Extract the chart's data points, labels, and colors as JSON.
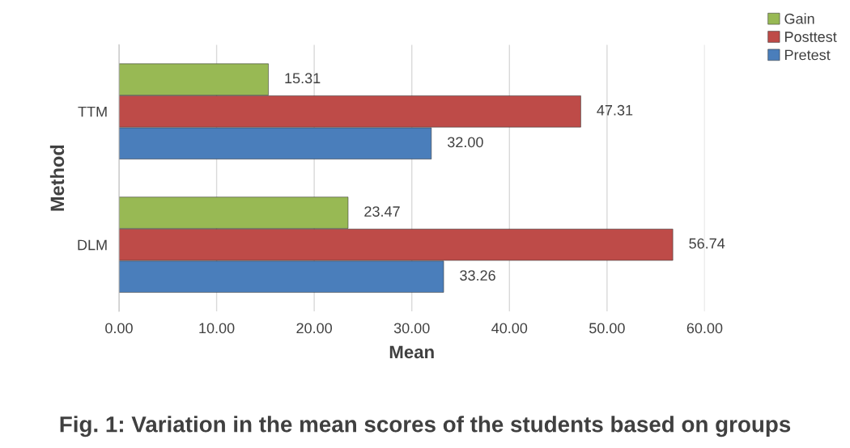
{
  "chart_data": {
    "type": "bar",
    "orientation": "horizontal",
    "title": "Fig. 1: Variation in the mean scores of the students based on groups",
    "xlabel": "Mean",
    "ylabel": "Method",
    "categories": [
      "TTM",
      "DLM"
    ],
    "series": [
      {
        "name": "Pretest",
        "color": "#4a7ebb",
        "values": [
          32.0,
          33.26
        ],
        "value_labels": [
          "32.00",
          "33.26"
        ]
      },
      {
        "name": "Posttest",
        "color": "#be4b48",
        "values": [
          47.31,
          56.74
        ],
        "value_labels": [
          "47.31",
          "56.74"
        ]
      },
      {
        "name": "Gain",
        "color": "#98b954",
        "values": [
          15.31,
          23.47
        ],
        "value_labels": [
          "15.31",
          "23.47"
        ]
      }
    ],
    "xlim": [
      0,
      60
    ],
    "xticks": [
      {
        "value": 0,
        "label": "0.00"
      },
      {
        "value": 10,
        "label": "10.00"
      },
      {
        "value": 20,
        "label": "20.00"
      },
      {
        "value": 30,
        "label": "30.00"
      },
      {
        "value": 40,
        "label": "40.00"
      },
      {
        "value": 50,
        "label": "50.00"
      },
      {
        "value": 60,
        "label": "60.00"
      }
    ],
    "grid": "x",
    "legend": "top right"
  }
}
